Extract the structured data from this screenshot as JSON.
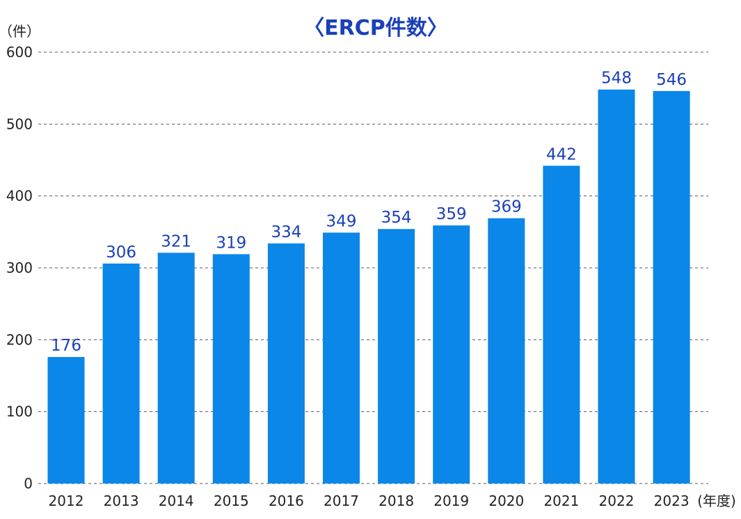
{
  "chart_data": {
    "type": "bar",
    "title": "〈ERCP件数〉",
    "y_unit_label": "（件）",
    "x_unit_label": "(年度)",
    "categories": [
      "2012",
      "2013",
      "2014",
      "2015",
      "2016",
      "2017",
      "2018",
      "2019",
      "2020",
      "2021",
      "2022",
      "2023"
    ],
    "values": [
      176,
      306,
      321,
      319,
      334,
      349,
      354,
      359,
      369,
      442,
      548,
      546
    ],
    "ylim": [
      0,
      600
    ],
    "yticks": [
      0,
      100,
      200,
      300,
      400,
      500,
      600
    ],
    "grid": true,
    "grid_style": "dashed",
    "colors": {
      "bar": "#0a87e8",
      "value_label": "#1a40b8",
      "title": "#1a40b8",
      "axis_text": "#222222",
      "grid": "#555555"
    }
  }
}
